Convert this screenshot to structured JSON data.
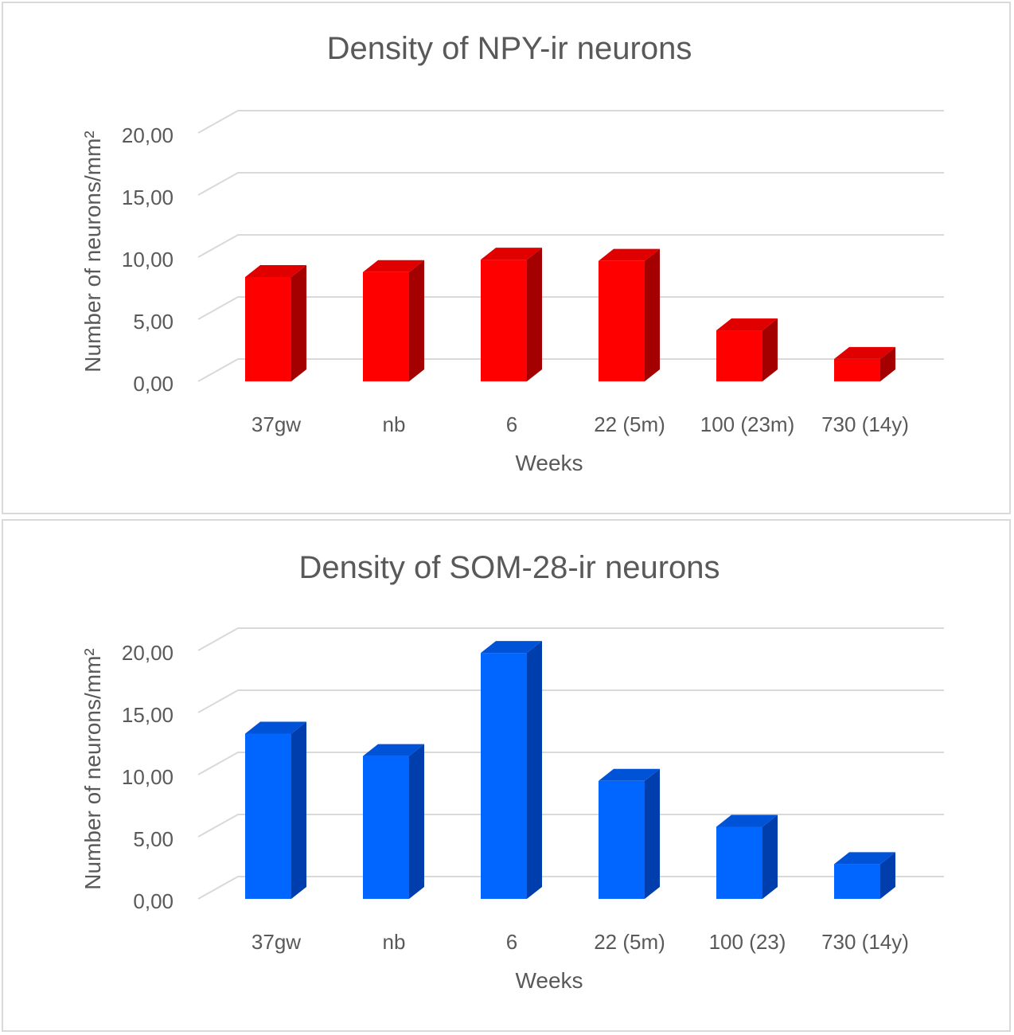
{
  "colors": {
    "npy": {
      "front": "#ff0000",
      "top": "#e00000",
      "side": "#a50000"
    },
    "som": {
      "front": "#0066ff",
      "top": "#0052d6",
      "side": "#003eae"
    },
    "grid": "#d9d9d9",
    "text": "#595959"
  },
  "chart_data": [
    {
      "type": "bar",
      "title": "Density of NPY-ir neurons",
      "xlabel": "Weeks",
      "ylabel": "Number of neurons/mm²",
      "categories": [
        "37gw",
        "nb",
        "6",
        "22 (5m)",
        "100 (23m)",
        "730 (14y)"
      ],
      "values": [
        8.4,
        8.8,
        9.8,
        9.7,
        4.1,
        1.8
      ],
      "ylim": [
        0,
        20
      ],
      "yticks": [
        "0,00",
        "5,00",
        "10,00",
        "15,00",
        "20,00"
      ],
      "grid": true,
      "style": "3d-column"
    },
    {
      "type": "bar",
      "title": "Density of SOM-28-ir neurons",
      "xlabel": "Weeks",
      "ylabel": "Number of neurons/mm²",
      "categories": [
        "37gw",
        "nb",
        "6",
        "22 (5m)",
        "100 (23)",
        "730 (14y)"
      ],
      "values": [
        13.3,
        11.5,
        19.8,
        9.5,
        5.8,
        2.8
      ],
      "ylim": [
        0,
        20
      ],
      "yticks": [
        "0,00",
        "5,00",
        "10,00",
        "15,00",
        "20,00"
      ],
      "grid": true,
      "style": "3d-column"
    }
  ]
}
